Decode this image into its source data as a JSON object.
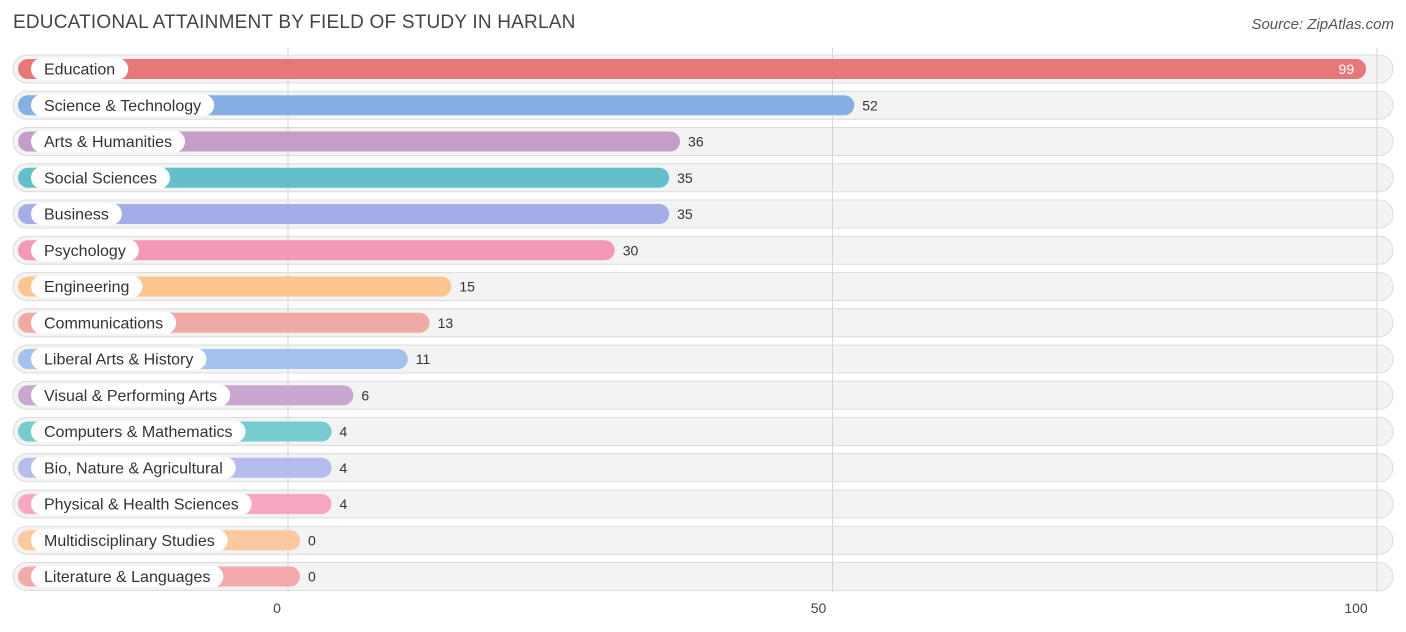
{
  "title": "EDUCATIONAL ATTAINMENT BY FIELD OF STUDY IN HARLAN",
  "source": "Source: ZipAtlas.com",
  "chart_data": {
    "type": "bar",
    "orientation": "horizontal",
    "title": "EDUCATIONAL ATTAINMENT BY FIELD OF STUDY IN HARLAN",
    "xlim": [
      0,
      100
    ],
    "xticks": [
      0,
      50,
      100
    ],
    "grid": true,
    "categories": [
      "Education",
      "Science & Technology",
      "Arts & Humanities",
      "Social Sciences",
      "Business",
      "Psychology",
      "Engineering",
      "Communications",
      "Liberal Arts & History",
      "Visual & Performing Arts",
      "Computers & Mathematics",
      "Bio, Nature & Agricultural",
      "Physical & Health Sciences",
      "Multidisciplinary Studies",
      "Literature & Languages"
    ],
    "values": [
      99,
      52,
      36,
      35,
      35,
      30,
      15,
      13,
      11,
      6,
      4,
      4,
      4,
      0,
      0
    ],
    "colors": [
      "#e8777a",
      "#86b0e3",
      "#c49ec9",
      "#63bfc9",
      "#a5ade8",
      "#f597b8",
      "#fbc590",
      "#f0aaa6",
      "#a3c3ec",
      "#c9a8d0",
      "#77cccf",
      "#b7bcef",
      "#f7a7c2",
      "#fbc99d",
      "#f2abaa"
    ]
  }
}
